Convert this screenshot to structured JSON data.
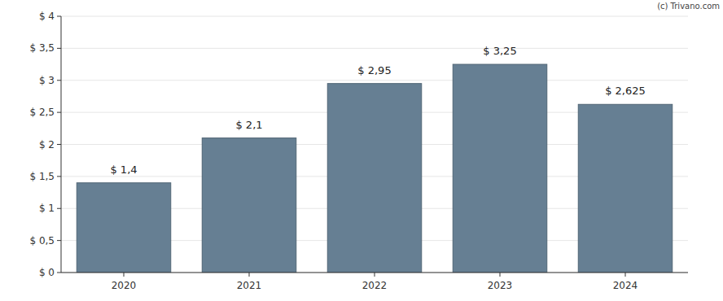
{
  "chart_data": {
    "type": "bar",
    "categories": [
      "2020",
      "2021",
      "2022",
      "2023",
      "2024"
    ],
    "values": [
      1.4,
      2.1,
      2.95,
      3.25,
      2.625
    ],
    "value_labels": [
      "$ 1,4",
      "$ 2,1",
      "$ 2,95",
      "$ 3,25",
      "$ 2,625"
    ],
    "data_labels": true,
    "color": "#667f93",
    "ylim": [
      0,
      4
    ],
    "yticks": [
      {
        "value": 0,
        "label": "$ 0"
      },
      {
        "value": 0.5,
        "label": "$ 0,5"
      },
      {
        "value": 1,
        "label": "$ 1"
      },
      {
        "value": 1.5,
        "label": "$ 1,5"
      },
      {
        "value": 2,
        "label": "$ 2"
      },
      {
        "value": 2.5,
        "label": "$ 2,5"
      },
      {
        "value": 3,
        "label": "$ 3"
      },
      {
        "value": 3.5,
        "label": "$ 3,5"
      },
      {
        "value": 4,
        "label": "$ 4"
      }
    ],
    "grid": true,
    "annotations": [
      "(c) Trivano.com"
    ]
  }
}
